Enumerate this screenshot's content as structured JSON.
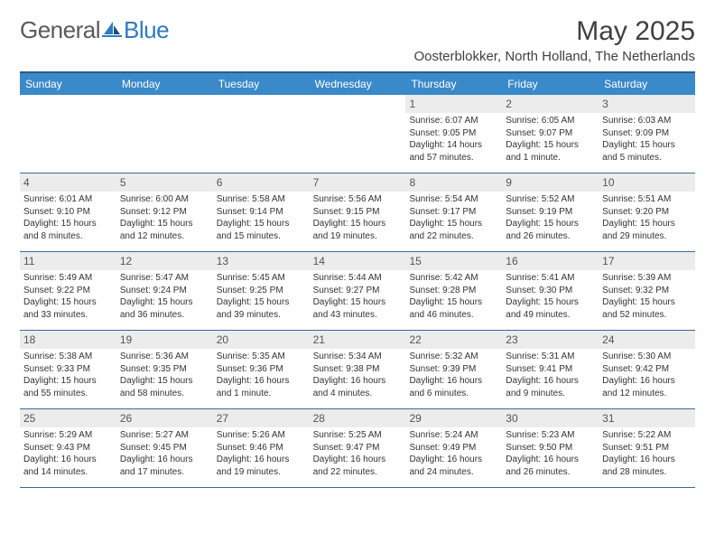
{
  "logo": {
    "text_general": "General",
    "text_blue": "Blue"
  },
  "title": "May 2025",
  "location": "Oosterblokker, North Holland, The Netherlands",
  "colors": {
    "header_bg": "#3a89c9",
    "header_border": "#2a5d8a",
    "daynum_bg": "#ececec",
    "text": "#333333",
    "logo_gray": "#5a5a5a",
    "logo_blue": "#2f7bbf"
  },
  "day_headers": [
    "Sunday",
    "Monday",
    "Tuesday",
    "Wednesday",
    "Thursday",
    "Friday",
    "Saturday"
  ],
  "weeks": [
    [
      {
        "empty": true
      },
      {
        "empty": true
      },
      {
        "empty": true
      },
      {
        "empty": true
      },
      {
        "day": "1",
        "sunrise": "Sunrise: 6:07 AM",
        "sunset": "Sunset: 9:05 PM",
        "daylight1": "Daylight: 14 hours",
        "daylight2": "and 57 minutes."
      },
      {
        "day": "2",
        "sunrise": "Sunrise: 6:05 AM",
        "sunset": "Sunset: 9:07 PM",
        "daylight1": "Daylight: 15 hours",
        "daylight2": "and 1 minute."
      },
      {
        "day": "3",
        "sunrise": "Sunrise: 6:03 AM",
        "sunset": "Sunset: 9:09 PM",
        "daylight1": "Daylight: 15 hours",
        "daylight2": "and 5 minutes."
      }
    ],
    [
      {
        "day": "4",
        "sunrise": "Sunrise: 6:01 AM",
        "sunset": "Sunset: 9:10 PM",
        "daylight1": "Daylight: 15 hours",
        "daylight2": "and 8 minutes."
      },
      {
        "day": "5",
        "sunrise": "Sunrise: 6:00 AM",
        "sunset": "Sunset: 9:12 PM",
        "daylight1": "Daylight: 15 hours",
        "daylight2": "and 12 minutes."
      },
      {
        "day": "6",
        "sunrise": "Sunrise: 5:58 AM",
        "sunset": "Sunset: 9:14 PM",
        "daylight1": "Daylight: 15 hours",
        "daylight2": "and 15 minutes."
      },
      {
        "day": "7",
        "sunrise": "Sunrise: 5:56 AM",
        "sunset": "Sunset: 9:15 PM",
        "daylight1": "Daylight: 15 hours",
        "daylight2": "and 19 minutes."
      },
      {
        "day": "8",
        "sunrise": "Sunrise: 5:54 AM",
        "sunset": "Sunset: 9:17 PM",
        "daylight1": "Daylight: 15 hours",
        "daylight2": "and 22 minutes."
      },
      {
        "day": "9",
        "sunrise": "Sunrise: 5:52 AM",
        "sunset": "Sunset: 9:19 PM",
        "daylight1": "Daylight: 15 hours",
        "daylight2": "and 26 minutes."
      },
      {
        "day": "10",
        "sunrise": "Sunrise: 5:51 AM",
        "sunset": "Sunset: 9:20 PM",
        "daylight1": "Daylight: 15 hours",
        "daylight2": "and 29 minutes."
      }
    ],
    [
      {
        "day": "11",
        "sunrise": "Sunrise: 5:49 AM",
        "sunset": "Sunset: 9:22 PM",
        "daylight1": "Daylight: 15 hours",
        "daylight2": "and 33 minutes."
      },
      {
        "day": "12",
        "sunrise": "Sunrise: 5:47 AM",
        "sunset": "Sunset: 9:24 PM",
        "daylight1": "Daylight: 15 hours",
        "daylight2": "and 36 minutes."
      },
      {
        "day": "13",
        "sunrise": "Sunrise: 5:45 AM",
        "sunset": "Sunset: 9:25 PM",
        "daylight1": "Daylight: 15 hours",
        "daylight2": "and 39 minutes."
      },
      {
        "day": "14",
        "sunrise": "Sunrise: 5:44 AM",
        "sunset": "Sunset: 9:27 PM",
        "daylight1": "Daylight: 15 hours",
        "daylight2": "and 43 minutes."
      },
      {
        "day": "15",
        "sunrise": "Sunrise: 5:42 AM",
        "sunset": "Sunset: 9:28 PM",
        "daylight1": "Daylight: 15 hours",
        "daylight2": "and 46 minutes."
      },
      {
        "day": "16",
        "sunrise": "Sunrise: 5:41 AM",
        "sunset": "Sunset: 9:30 PM",
        "daylight1": "Daylight: 15 hours",
        "daylight2": "and 49 minutes."
      },
      {
        "day": "17",
        "sunrise": "Sunrise: 5:39 AM",
        "sunset": "Sunset: 9:32 PM",
        "daylight1": "Daylight: 15 hours",
        "daylight2": "and 52 minutes."
      }
    ],
    [
      {
        "day": "18",
        "sunrise": "Sunrise: 5:38 AM",
        "sunset": "Sunset: 9:33 PM",
        "daylight1": "Daylight: 15 hours",
        "daylight2": "and 55 minutes."
      },
      {
        "day": "19",
        "sunrise": "Sunrise: 5:36 AM",
        "sunset": "Sunset: 9:35 PM",
        "daylight1": "Daylight: 15 hours",
        "daylight2": "and 58 minutes."
      },
      {
        "day": "20",
        "sunrise": "Sunrise: 5:35 AM",
        "sunset": "Sunset: 9:36 PM",
        "daylight1": "Daylight: 16 hours",
        "daylight2": "and 1 minute."
      },
      {
        "day": "21",
        "sunrise": "Sunrise: 5:34 AM",
        "sunset": "Sunset: 9:38 PM",
        "daylight1": "Daylight: 16 hours",
        "daylight2": "and 4 minutes."
      },
      {
        "day": "22",
        "sunrise": "Sunrise: 5:32 AM",
        "sunset": "Sunset: 9:39 PM",
        "daylight1": "Daylight: 16 hours",
        "daylight2": "and 6 minutes."
      },
      {
        "day": "23",
        "sunrise": "Sunrise: 5:31 AM",
        "sunset": "Sunset: 9:41 PM",
        "daylight1": "Daylight: 16 hours",
        "daylight2": "and 9 minutes."
      },
      {
        "day": "24",
        "sunrise": "Sunrise: 5:30 AM",
        "sunset": "Sunset: 9:42 PM",
        "daylight1": "Daylight: 16 hours",
        "daylight2": "and 12 minutes."
      }
    ],
    [
      {
        "day": "25",
        "sunrise": "Sunrise: 5:29 AM",
        "sunset": "Sunset: 9:43 PM",
        "daylight1": "Daylight: 16 hours",
        "daylight2": "and 14 minutes."
      },
      {
        "day": "26",
        "sunrise": "Sunrise: 5:27 AM",
        "sunset": "Sunset: 9:45 PM",
        "daylight1": "Daylight: 16 hours",
        "daylight2": "and 17 minutes."
      },
      {
        "day": "27",
        "sunrise": "Sunrise: 5:26 AM",
        "sunset": "Sunset: 9:46 PM",
        "daylight1": "Daylight: 16 hours",
        "daylight2": "and 19 minutes."
      },
      {
        "day": "28",
        "sunrise": "Sunrise: 5:25 AM",
        "sunset": "Sunset: 9:47 PM",
        "daylight1": "Daylight: 16 hours",
        "daylight2": "and 22 minutes."
      },
      {
        "day": "29",
        "sunrise": "Sunrise: 5:24 AM",
        "sunset": "Sunset: 9:49 PM",
        "daylight1": "Daylight: 16 hours",
        "daylight2": "and 24 minutes."
      },
      {
        "day": "30",
        "sunrise": "Sunrise: 5:23 AM",
        "sunset": "Sunset: 9:50 PM",
        "daylight1": "Daylight: 16 hours",
        "daylight2": "and 26 minutes."
      },
      {
        "day": "31",
        "sunrise": "Sunrise: 5:22 AM",
        "sunset": "Sunset: 9:51 PM",
        "daylight1": "Daylight: 16 hours",
        "daylight2": "and 28 minutes."
      }
    ]
  ]
}
